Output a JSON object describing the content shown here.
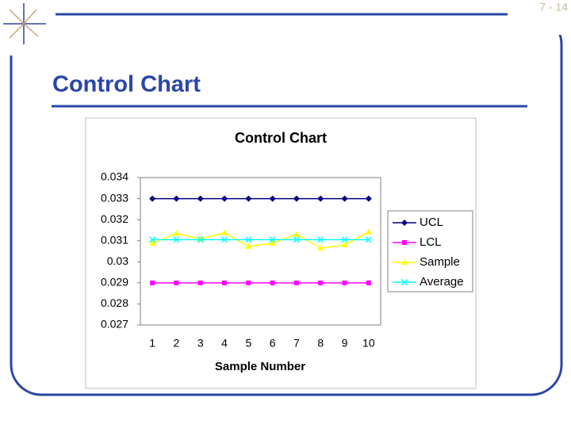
{
  "slide": {
    "page_number": "7 - 14",
    "title": "Control Chart"
  },
  "chart_data": {
    "type": "line",
    "title": "Control Chart",
    "x_label": "Sample Number",
    "categories": [
      "1",
      "2",
      "3",
      "4",
      "5",
      "6",
      "7",
      "8",
      "9",
      "10"
    ],
    "series": [
      {
        "name": "UCL",
        "color": "#000080",
        "marker": "diamond",
        "values": [
          0.033,
          0.033,
          0.033,
          0.033,
          0.033,
          0.033,
          0.033,
          0.033,
          0.033,
          0.033
        ]
      },
      {
        "name": "LCL",
        "color": "#ff00ff",
        "marker": "square",
        "values": [
          0.029,
          0.029,
          0.029,
          0.029,
          0.029,
          0.029,
          0.029,
          0.029,
          0.029,
          0.029
        ]
      },
      {
        "name": "Sample",
        "color": "#ffff00",
        "marker": "triangle",
        "values": [
          0.03088,
          0.03135,
          0.03108,
          0.03138,
          0.03073,
          0.03088,
          0.03131,
          0.03065,
          0.0308,
          0.03142
        ]
      },
      {
        "name": "Average",
        "color": "#00ffff",
        "marker": "x",
        "values": [
          0.03105,
          0.03105,
          0.03105,
          0.03105,
          0.03105,
          0.03105,
          0.03105,
          0.03105,
          0.03105,
          0.03105
        ]
      }
    ],
    "ylim": [
      0.027,
      0.034
    ],
    "yticks": [
      0.027,
      0.028,
      0.029,
      0.03,
      0.031,
      0.032,
      0.033,
      0.034
    ],
    "grid": false,
    "legend": "right"
  }
}
